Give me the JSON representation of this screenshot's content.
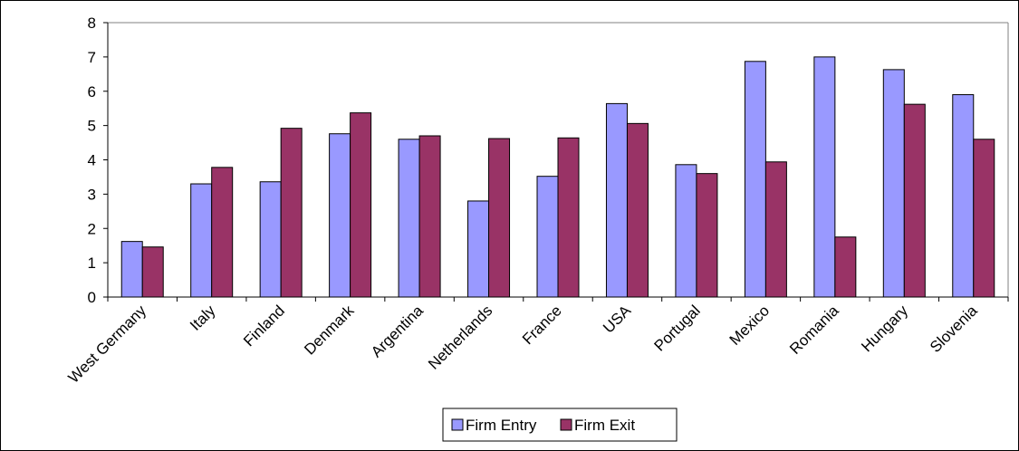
{
  "chart_data": {
    "type": "bar",
    "title": "",
    "xlabel": "",
    "ylabel": "",
    "ylim": [
      0,
      8
    ],
    "yticks": [
      0,
      1,
      2,
      3,
      4,
      5,
      6,
      7,
      8
    ],
    "grid": false,
    "legend_position": "bottom",
    "categories": [
      "West Germany",
      "Italy",
      "Finland",
      "Denmark",
      "Argentina",
      "Netherlands",
      "France",
      "USA",
      "Portugal",
      "Mexico",
      "Romania",
      "Hungary",
      "Slovenia"
    ],
    "series": [
      {
        "name": "Firm Entry",
        "color": "#9999ff",
        "values": [
          1.62,
          3.3,
          3.36,
          4.76,
          4.6,
          2.8,
          3.52,
          5.64,
          3.86,
          6.87,
          7.0,
          6.63,
          5.9
        ]
      },
      {
        "name": "Firm Exit",
        "color": "#993366",
        "values": [
          1.46,
          3.78,
          4.92,
          5.37,
          4.7,
          4.62,
          4.64,
          5.06,
          3.6,
          3.94,
          1.75,
          5.62,
          4.6
        ]
      }
    ]
  }
}
